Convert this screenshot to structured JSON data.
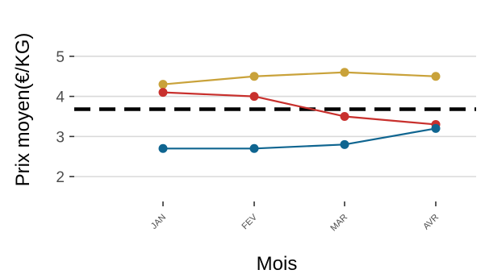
{
  "chart_data": {
    "type": "line",
    "title": "",
    "xlabel": "Mois",
    "ylabel": "Prix moyen(€/KG)",
    "categories": [
      "JAN",
      "FEV",
      "MAR",
      "AVR"
    ],
    "yticks": [
      2,
      3,
      4,
      5
    ],
    "ylim": [
      1.5,
      5.6
    ],
    "grid": "horizontal",
    "legend": "none",
    "series": [
      {
        "color": "#c9a23a",
        "values": [
          4.3,
          4.5,
          4.6,
          4.5
        ]
      },
      {
        "color": "#c8302d",
        "values": [
          4.1,
          4.0,
          3.5,
          3.3
        ]
      },
      {
        "color": "#0f6590",
        "values": [
          2.7,
          2.7,
          2.8,
          3.2
        ]
      }
    ],
    "reference_line": {
      "value": 3.68,
      "style": "dashed",
      "color": "#000000"
    }
  }
}
